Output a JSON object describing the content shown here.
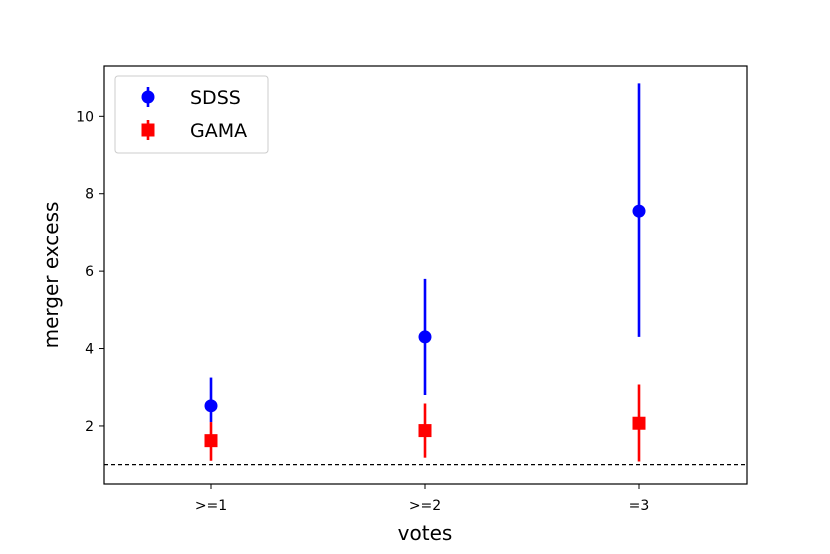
{
  "chart_data": {
    "type": "scatter",
    "categories": [
      ">=1",
      ">=2",
      "=3"
    ],
    "xlabel": "votes",
    "ylabel": "merger excess",
    "ylim": [
      0.5,
      11.3
    ],
    "yticks": [
      2,
      4,
      6,
      8,
      10
    ],
    "reference_line": {
      "y": 1,
      "style": "dashed",
      "color": "#000000"
    },
    "legend": {
      "placement": "upper-left"
    },
    "series": [
      {
        "name": "SDSS",
        "marker": "circle",
        "color": "#0000ff",
        "values": [
          2.52,
          4.3,
          7.55
        ],
        "err_low": [
          2.1,
          2.8,
          4.3
        ],
        "err_high": [
          3.25,
          5.8,
          10.85
        ]
      },
      {
        "name": "GAMA",
        "marker": "square",
        "color": "#ff0000",
        "values": [
          1.62,
          1.88,
          2.07
        ],
        "err_low": [
          1.1,
          1.18,
          1.08
        ],
        "err_high": [
          2.1,
          2.58,
          3.07
        ]
      }
    ]
  }
}
